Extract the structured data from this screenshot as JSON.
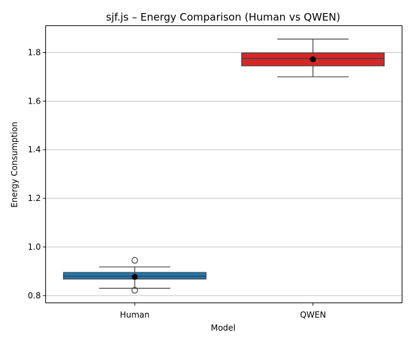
{
  "chart_data": {
    "type": "box",
    "title": "sjf.js – Energy Comparison (Human vs QWEN)",
    "xlabel": "Model",
    "ylabel": "Energy Consumption",
    "ylim": [
      0.77,
      1.91
    ],
    "yticks": [
      0.8,
      1.0,
      1.2,
      1.4,
      1.6,
      1.8
    ],
    "ytick_labels": [
      "0.8",
      "1.0",
      "1.2",
      "1.4",
      "1.6",
      "1.8"
    ],
    "grid": "y-axis",
    "categories": [
      "Human",
      "QWEN"
    ],
    "series": [
      {
        "category": "Human",
        "color": "#1f77b4",
        "whisker_low": 0.83,
        "q1": 0.868,
        "median": 0.88,
        "q3": 0.895,
        "whisker_high": 0.918,
        "mean": 0.877,
        "outliers": [
          0.945,
          0.822
        ]
      },
      {
        "category": "QWEN",
        "color": "#d62728",
        "whisker_low": 1.7,
        "q1": 1.745,
        "median": 1.775,
        "q3": 1.798,
        "whisker_high": 1.855,
        "mean": 1.772,
        "outliers": []
      }
    ]
  }
}
